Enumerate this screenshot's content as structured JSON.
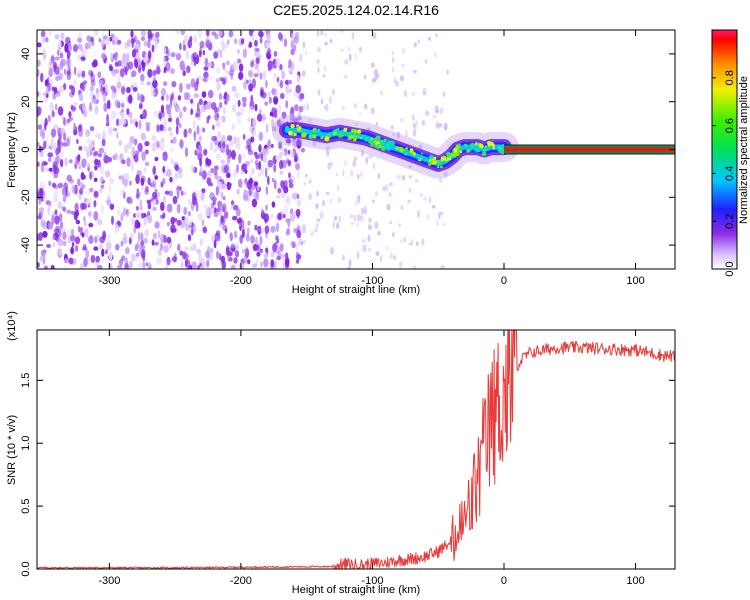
{
  "page": {
    "title": "C2E5.2025.124.02.14.R16"
  },
  "colors": {
    "snr_line": "#e83a3a",
    "noise": "#8a2be2",
    "trace_core": "#e8102a",
    "trace_band": "#1a8f20"
  },
  "chart_data": [
    {
      "type": "heatmap",
      "title": "C2E5.2025.124.02.14.R16",
      "xlabel": "Height of straight line (km)",
      "ylabel": "Frequency (Hz)",
      "xlim": [
        -355,
        130
      ],
      "ylim": [
        -50,
        50
      ],
      "xticks": [
        -300,
        -200,
        -100,
        0,
        100
      ],
      "yticks": [
        -40,
        -20,
        0,
        20,
        40
      ],
      "ridge": {
        "x": [
          -165,
          -155,
          -145,
          -135,
          -125,
          -115,
          -105,
          -95,
          -85,
          -75,
          -65,
          -55,
          -50,
          -45,
          -40,
          -35,
          -30,
          -25,
          -20,
          -15,
          -10,
          -5,
          0
        ],
        "y": [
          8,
          8,
          7,
          6,
          7,
          6,
          5,
          3,
          1,
          -1,
          -3,
          -5,
          -6,
          -5,
          -3,
          0,
          1,
          1,
          1,
          0,
          1,
          1,
          1
        ]
      },
      "line_after": {
        "x": [
          0,
          130
        ],
        "y": 0
      },
      "colorbar": {
        "label": "Normalized spectral amplitude",
        "range": [
          0,
          1
        ],
        "ticks": [
          "0.0",
          "0.2",
          "0.4",
          "0.6",
          "0.8"
        ]
      },
      "grid": false
    },
    {
      "type": "line",
      "xlabel": "Height of straight line (km)",
      "ylabel": "SNR (10 * v/v)",
      "multiplier": "(x10^4)",
      "xlim": [
        -355,
        130
      ],
      "ylim": [
        0,
        1.9
      ],
      "xticks": [
        -300,
        -200,
        -100,
        0,
        100
      ],
      "yticks": [
        "0.0",
        "0.5",
        "1.0",
        "1.5"
      ],
      "series": [
        {
          "x": [
            -355,
            -250,
            -130,
            -120,
            -110,
            -100,
            -90,
            -80,
            -70,
            -60,
            -50,
            -45,
            -40,
            -35,
            -30,
            -25,
            -20,
            -15,
            -10,
            -5,
            0,
            5,
            10,
            15,
            20,
            30,
            40,
            60,
            80,
            100,
            120,
            130
          ],
          "y": [
            0.01,
            0.01,
            0.02,
            0.04,
            0.03,
            0.04,
            0.05,
            0.07,
            0.08,
            0.1,
            0.14,
            0.18,
            0.22,
            0.3,
            0.4,
            0.55,
            0.75,
            1.0,
            1.2,
            1.35,
            1.45,
            1.55,
            1.62,
            1.68,
            1.72,
            1.74,
            1.76,
            1.76,
            1.75,
            1.74,
            1.7,
            1.69
          ]
        }
      ],
      "grid": false
    }
  ],
  "top_panel": {
    "colorbar_label": "Normalized spectral amplitude",
    "colorbar_ticks": [
      "0.0",
      "0.2",
      "0.4",
      "0.6",
      "0.8"
    ],
    "yticks": [
      "-40",
      "-20",
      "0",
      "20",
      "40"
    ],
    "xticks": [
      "-300",
      "-200",
      "-100",
      "0",
      "100"
    ],
    "xlabel": "Height of straight line (km)",
    "ylabel": "Frequency (Hz)"
  },
  "bottom_panel": {
    "multiplier": "(x10⁴)",
    "ylabel": "SNR (10 * v/v)",
    "yticks": [
      "0.0",
      "0.5",
      "1.0",
      "1.5"
    ],
    "xticks": [
      "-300",
      "-200",
      "-100",
      "0",
      "100"
    ],
    "xlabel": "Height of straight line (km)"
  }
}
